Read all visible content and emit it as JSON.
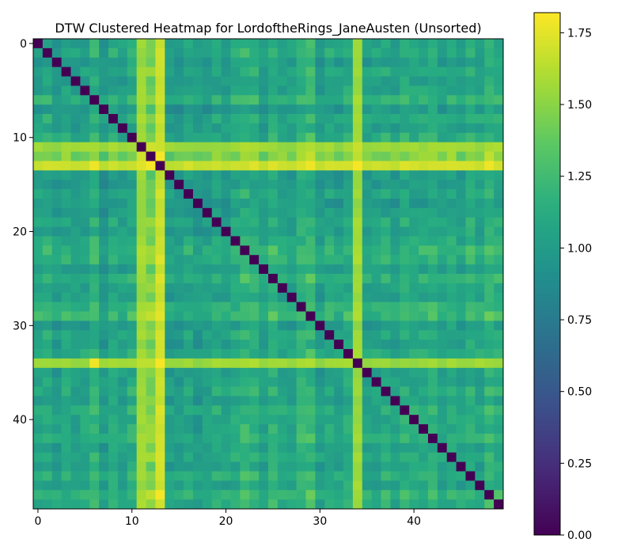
{
  "chart_data": {
    "type": "heatmap",
    "title": "DTW Clustered Heatmap for LordoftheRings_JaneAusten (Unsorted)",
    "xlabel": "",
    "ylabel": "",
    "n": 50,
    "xticks": [
      0,
      10,
      20,
      30,
      40
    ],
    "yticks": [
      0,
      10,
      20,
      30,
      40
    ],
    "colormap": "viridis",
    "vmin": 0.0,
    "vmax": 1.82,
    "colorbar_ticks": [
      0.0,
      0.25,
      0.5,
      0.75,
      1.0,
      1.25,
      1.5,
      1.75
    ],
    "colorbar_tick_labels": [
      "0.00",
      "0.25",
      "0.50",
      "0.75",
      "1.00",
      "1.25",
      "1.50",
      "1.75"
    ],
    "diagonal_value": 0.0,
    "base_value_typical": 1.05,
    "row_col_offsets": [
      0.0,
      0.05,
      -0.05,
      0.02,
      -0.03,
      0.0,
      0.1,
      -0.08,
      0.04,
      -0.02,
      0.06,
      0.3,
      0.4,
      0.55,
      -0.05,
      -0.06,
      0.0,
      -0.08,
      -0.05,
      0.02,
      -0.02,
      0.04,
      0.12,
      0.08,
      -0.03,
      0.1,
      0.0,
      -0.02,
      0.1,
      0.15,
      -0.05,
      0.02,
      -0.03,
      0.05,
      0.4,
      -0.02,
      0.0,
      0.04,
      -0.03,
      0.06,
      0.02,
      0.03,
      0.08,
      -0.02,
      0.04,
      -0.02,
      0.08,
      0.0,
      0.12,
      0.06
    ],
    "highlight_rows": [
      {
        "index": 11,
        "typical_value": 1.55
      },
      {
        "index": 13,
        "typical_value": 1.68
      },
      {
        "index": 34,
        "typical_value": 1.55
      }
    ],
    "highlight_cols": [
      {
        "index": 11,
        "typical_value": 1.55
      },
      {
        "index": 13,
        "typical_value": 1.68
      },
      {
        "index": 34,
        "typical_value": 1.55
      }
    ],
    "peak_cells": [
      {
        "row": 12,
        "col": 13,
        "value": 1.8
      },
      {
        "row": 13,
        "col": 12,
        "value": 1.8
      },
      {
        "row": 13,
        "col": 6,
        "value": 1.78
      },
      {
        "row": 13,
        "col": 29,
        "value": 1.78
      },
      {
        "row": 13,
        "col": 34,
        "value": 1.8
      },
      {
        "row": 13,
        "col": 48,
        "value": 1.78
      },
      {
        "row": 34,
        "col": 6,
        "value": 1.78
      },
      {
        "row": 34,
        "col": 13,
        "value": 1.8
      },
      {
        "row": 48,
        "col": 13,
        "value": 1.8
      },
      {
        "row": 29,
        "col": 13,
        "value": 1.75
      }
    ]
  }
}
